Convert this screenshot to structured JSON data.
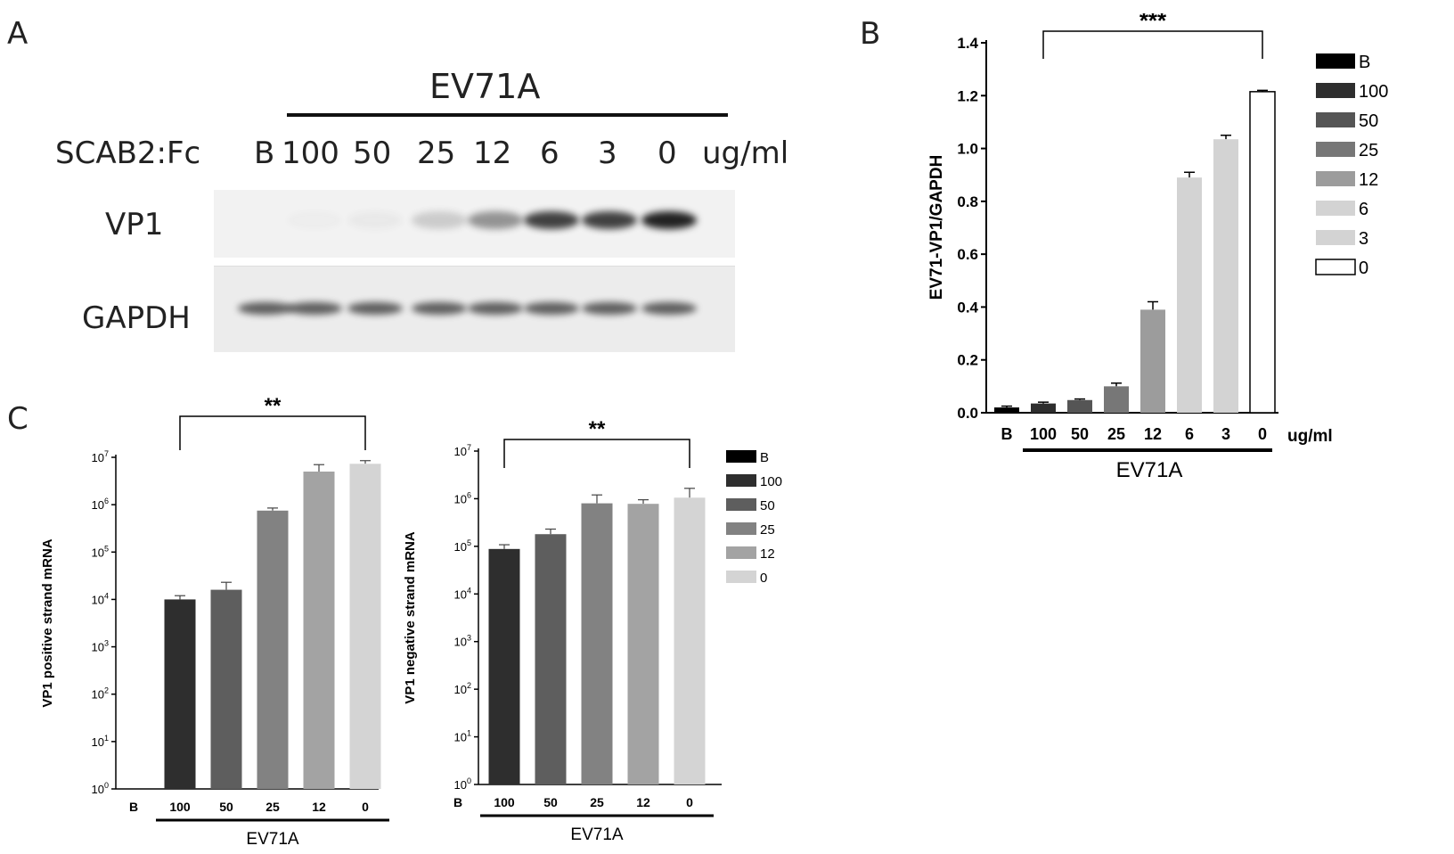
{
  "panels": {
    "a": "A",
    "b": "B",
    "c": "C"
  },
  "blot": {
    "title": "EV71A",
    "treatment_label": "SCAB2:Fc",
    "lanes": [
      "B",
      "100",
      "50",
      "25",
      "12",
      "6",
      "3",
      "0"
    ],
    "unit": "ug/ml",
    "rows": [
      {
        "label": "VP1",
        "intensity": [
          0.0,
          0.02,
          0.04,
          0.18,
          0.45,
          0.85,
          0.85,
          1.0
        ]
      },
      {
        "label": "GAPDH",
        "intensity": [
          0.7,
          0.7,
          0.7,
          0.7,
          0.7,
          0.7,
          0.7,
          0.7
        ]
      }
    ],
    "colors": {
      "background": "#eeeeee",
      "band": "#222222"
    }
  },
  "chart_data": [
    {
      "id": "B",
      "type": "bar",
      "categories": [
        "B",
        "100",
        "50",
        "25",
        "12",
        "6",
        "3",
        "0"
      ],
      "values": [
        0.02,
        0.035,
        0.048,
        0.1,
        0.39,
        0.89,
        1.035,
        1.215
      ],
      "errors": [
        0.005,
        0.005,
        0.004,
        0.012,
        0.03,
        0.02,
        0.015,
        0.005
      ],
      "ylabel": "EV71-VP1/GAPDH",
      "xunit": "ug/ml",
      "group_label": "EV71A",
      "ylim": [
        0,
        1.4
      ],
      "yticks": [
        "0.0",
        "0.2",
        "0.4",
        "0.6",
        "0.8",
        "1.0",
        "1.2",
        "1.4"
      ],
      "significance": "***",
      "colors": [
        "#000000",
        "#2e2e2e",
        "#555555",
        "#777777",
        "#9c9c9c",
        "#d3d3d3",
        "#d3d3d3",
        "#ffffff"
      ],
      "legend": [
        "B",
        "100",
        "50",
        "25",
        "12",
        "6",
        "3",
        "0"
      ],
      "legend_position": "right"
    },
    {
      "id": "C-left",
      "type": "bar",
      "scale": "log",
      "categories": [
        "B",
        "100",
        "50",
        "25",
        "12",
        "0"
      ],
      "values": [
        null,
        10000,
        16000,
        750000,
        5000000,
        7300000
      ],
      "errors_upper": [
        null,
        12000,
        23000,
        850000,
        7000000,
        8500000
      ],
      "ylabel": "VP1 positive strand mRNA",
      "group_label": "EV71A",
      "ylim": [
        1,
        10000000
      ],
      "significance": "**",
      "colors": [
        "#000000",
        "#2e2e2e",
        "#5e5e5e",
        "#828282",
        "#a3a3a3",
        "#d4d4d4"
      ]
    },
    {
      "id": "C-right",
      "type": "bar",
      "scale": "log",
      "categories": [
        "B",
        "100",
        "50",
        "25",
        "12",
        "0"
      ],
      "values": [
        null,
        88000,
        180000,
        800000,
        780000,
        1050000
      ],
      "errors_upper": [
        null,
        108000,
        230000,
        1200000,
        950000,
        1650000
      ],
      "ylabel": "VP1 negative strand mRNA",
      "group_label": "EV71A",
      "ylim": [
        1,
        10000000
      ],
      "significance": "**",
      "colors": [
        "#000000",
        "#2e2e2e",
        "#5e5e5e",
        "#828282",
        "#a3a3a3",
        "#d4d4d4"
      ],
      "legend": [
        "B",
        "100",
        "50",
        "25",
        "12",
        "0"
      ],
      "legend_position": "right"
    }
  ]
}
